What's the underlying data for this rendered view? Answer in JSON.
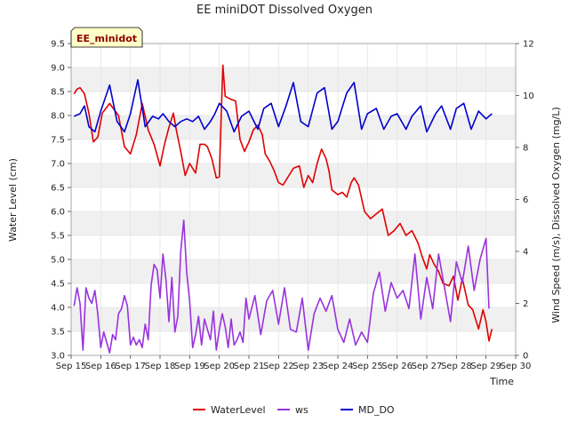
{
  "chart_data": {
    "type": "line",
    "title": "EE miniDOT Dissolved Oxygen",
    "site_label": "EE_minidot",
    "xlabel": "Time",
    "ylabel_left": "Water Level (cm)",
    "ylabel_right": "Wind Speed (m/s), Dissolved Oxygen (mg/L)",
    "x_ticks": [
      "Sep 15",
      "Sep 16",
      "Sep 17",
      "Sep 18",
      "Sep 19",
      "Sep 20",
      "Sep 21",
      "Sep 22",
      "Sep 23",
      "Sep 24",
      "Sep 25",
      "Sep 26",
      "Sep 27",
      "Sep 28",
      "Sep 29",
      "Sep 30"
    ],
    "xlim_day": [
      15,
      30
    ],
    "ylim_left": [
      3.0,
      9.5
    ],
    "ylim_right": [
      0,
      12
    ],
    "y_ticks_left": [
      "3.0",
      "3.5",
      "4.0",
      "4.5",
      "5.0",
      "5.5",
      "6.0",
      "6.5",
      "7.0",
      "7.5",
      "8.0",
      "8.5",
      "9.0",
      "9.5"
    ],
    "y_ticks_right": [
      "0",
      "2",
      "4",
      "6",
      "8",
      "10",
      "12"
    ],
    "background_bands": true,
    "legend_position": "bottom",
    "series": [
      {
        "name": "WaterLevel",
        "axis": "left",
        "color": "#e00000",
        "x": [
          15.1,
          15.2,
          15.3,
          15.45,
          15.6,
          15.75,
          15.9,
          16.05,
          16.3,
          16.6,
          16.8,
          17.0,
          17.2,
          17.4,
          17.6,
          17.8,
          18.0,
          18.15,
          18.3,
          18.45,
          18.55,
          18.7,
          18.85,
          19.0,
          19.2,
          19.35,
          19.5,
          19.6,
          19.75,
          19.9,
          20.0,
          20.07,
          20.12,
          20.2,
          20.35,
          20.55,
          20.7,
          20.85,
          21.0,
          21.15,
          21.3,
          21.45,
          21.55,
          21.7,
          21.85,
          22.0,
          22.15,
          22.35,
          22.5,
          22.7,
          22.85,
          23.0,
          23.15,
          23.3,
          23.45,
          23.6,
          23.7,
          23.8,
          24.0,
          24.15,
          24.3,
          24.45,
          24.55,
          24.7,
          24.9,
          25.1,
          25.3,
          25.5,
          25.7,
          25.9,
          26.1,
          26.3,
          26.5,
          26.7,
          26.85,
          27.0,
          27.1,
          27.25,
          27.4,
          27.55,
          27.75,
          27.9,
          28.05,
          28.2,
          28.4,
          28.55,
          28.75,
          28.9,
          29.0,
          29.1,
          29.2
        ],
        "values": [
          8.45,
          8.55,
          8.58,
          8.45,
          8.05,
          7.45,
          7.55,
          8.05,
          8.25,
          8.0,
          7.35,
          7.2,
          7.6,
          8.25,
          7.7,
          7.4,
          6.95,
          7.4,
          7.75,
          8.05,
          7.7,
          7.25,
          6.75,
          7.0,
          6.8,
          7.4,
          7.4,
          7.35,
          7.1,
          6.7,
          6.72,
          8.1,
          9.05,
          8.4,
          8.35,
          8.3,
          7.5,
          7.25,
          7.45,
          7.7,
          7.8,
          7.6,
          7.2,
          7.05,
          6.85,
          6.6,
          6.55,
          6.75,
          6.9,
          6.95,
          6.5,
          6.75,
          6.6,
          7.0,
          7.3,
          7.1,
          6.85,
          6.45,
          6.35,
          6.4,
          6.3,
          6.6,
          6.7,
          6.55,
          6.0,
          5.85,
          5.95,
          6.05,
          5.5,
          5.6,
          5.75,
          5.5,
          5.6,
          5.35,
          5.05,
          4.8,
          5.1,
          4.9,
          4.75,
          4.5,
          4.45,
          4.65,
          4.15,
          4.6,
          4.05,
          3.95,
          3.55,
          3.95,
          3.7,
          3.3,
          3.55
        ]
      },
      {
        "name": "ws",
        "axis": "right",
        "color": "#9933dd",
        "x": [
          15.1,
          15.2,
          15.3,
          15.4,
          15.5,
          15.6,
          15.7,
          15.8,
          15.9,
          16.0,
          16.1,
          16.2,
          16.3,
          16.4,
          16.5,
          16.6,
          16.7,
          16.8,
          16.9,
          17.0,
          17.1,
          17.2,
          17.3,
          17.4,
          17.5,
          17.6,
          17.7,
          17.8,
          17.9,
          18.0,
          18.1,
          18.2,
          18.3,
          18.4,
          18.5,
          18.6,
          18.7,
          18.8,
          18.9,
          19.0,
          19.1,
          19.2,
          19.3,
          19.4,
          19.5,
          19.6,
          19.7,
          19.8,
          19.9,
          20.0,
          20.1,
          20.2,
          20.3,
          20.4,
          20.5,
          20.6,
          20.7,
          20.8,
          20.9,
          21.0,
          21.2,
          21.4,
          21.6,
          21.8,
          22.0,
          22.2,
          22.4,
          22.6,
          22.8,
          23.0,
          23.2,
          23.4,
          23.6,
          23.8,
          24.0,
          24.2,
          24.4,
          24.6,
          24.8,
          25.0,
          25.2,
          25.4,
          25.6,
          25.8,
          26.0,
          26.2,
          26.4,
          26.6,
          26.8,
          27.0,
          27.2,
          27.4,
          27.6,
          27.8,
          28.0,
          28.2,
          28.4,
          28.6,
          28.8,
          29.0,
          29.1
        ],
        "values": [
          1.9,
          2.6,
          2.0,
          0.2,
          2.6,
          2.2,
          2.0,
          2.5,
          1.6,
          0.3,
          0.9,
          0.5,
          0.1,
          0.8,
          0.6,
          1.6,
          1.8,
          2.3,
          1.9,
          0.4,
          0.7,
          0.4,
          0.6,
          0.3,
          1.2,
          0.6,
          2.7,
          3.5,
          3.3,
          2.2,
          3.9,
          2.9,
          1.3,
          3.0,
          0.9,
          1.5,
          4.0,
          5.2,
          3.2,
          2.1,
          0.3,
          0.8,
          1.5,
          0.4,
          1.4,
          1.0,
          0.6,
          1.7,
          0.2,
          1.0,
          1.6,
          1.1,
          0.3,
          1.4,
          0.4,
          0.6,
          0.9,
          0.5,
          2.2,
          1.4,
          2.3,
          0.8,
          2.1,
          2.5,
          1.2,
          2.6,
          1.0,
          0.9,
          2.2,
          0.2,
          1.6,
          2.2,
          1.7,
          2.3,
          1.0,
          0.5,
          1.4,
          0.4,
          0.9,
          0.5,
          2.4,
          3.2,
          1.7,
          2.8,
          2.2,
          2.5,
          1.8,
          3.9,
          1.4,
          3.0,
          1.8,
          3.9,
          2.6,
          1.3,
          3.6,
          2.8,
          4.2,
          2.5,
          3.7,
          4.5,
          1.8
        ]
      },
      {
        "name": "MD_DO",
        "axis": "right",
        "color": "#0000cc",
        "x": [
          15.1,
          15.3,
          15.45,
          15.6,
          15.8,
          16.0,
          16.3,
          16.55,
          16.8,
          17.0,
          17.25,
          17.5,
          17.75,
          17.95,
          18.1,
          18.3,
          18.5,
          18.7,
          18.9,
          19.1,
          19.3,
          19.5,
          19.7,
          19.85,
          20.0,
          20.25,
          20.5,
          20.75,
          21.0,
          21.3,
          21.5,
          21.75,
          22.0,
          22.25,
          22.5,
          22.75,
          23.0,
          23.3,
          23.55,
          23.8,
          24.0,
          24.3,
          24.55,
          24.8,
          25.0,
          25.3,
          25.55,
          25.8,
          26.0,
          26.3,
          26.5,
          26.8,
          27.0,
          27.3,
          27.5,
          27.8,
          28.0,
          28.25,
          28.5,
          28.75,
          29.0,
          29.2
        ],
        "values": [
          9.2,
          9.3,
          9.6,
          8.8,
          8.6,
          9.4,
          10.4,
          9.0,
          8.6,
          9.3,
          10.6,
          8.8,
          9.2,
          9.1,
          9.3,
          9.0,
          8.8,
          9.0,
          9.1,
          9.0,
          9.2,
          8.7,
          9.0,
          9.3,
          9.7,
          9.4,
          8.6,
          9.2,
          9.4,
          8.7,
          9.5,
          9.7,
          8.8,
          9.6,
          10.5,
          9.0,
          8.8,
          10.1,
          10.3,
          8.7,
          9.0,
          10.1,
          10.5,
          8.7,
          9.3,
          9.5,
          8.7,
          9.2,
          9.3,
          8.7,
          9.2,
          9.6,
          8.6,
          9.3,
          9.6,
          8.7,
          9.5,
          9.7,
          8.7,
          9.4,
          9.1,
          9.3
        ]
      }
    ]
  }
}
